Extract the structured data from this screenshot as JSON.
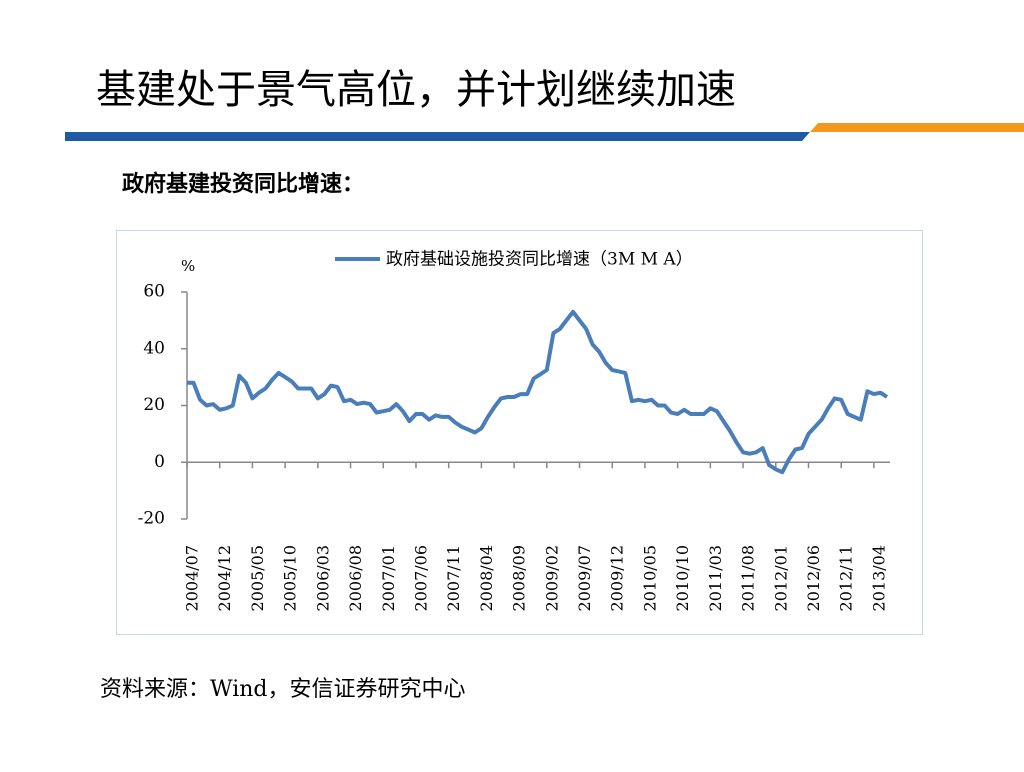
{
  "header": {
    "title": "基建处于景气高位，并计划继续加速"
  },
  "subtitle": "政府基建投资同比增速：",
  "source": "资料来源：Wind，安信证券研究中心",
  "chart_data": {
    "type": "line",
    "y_unit": "%",
    "categories": [
      "2004/07",
      null,
      null,
      null,
      null,
      "2004/12",
      null,
      null,
      null,
      null,
      "2005/05",
      null,
      null,
      null,
      null,
      "2005/10",
      null,
      null,
      null,
      null,
      "2006/03",
      null,
      null,
      null,
      null,
      "2006/08",
      null,
      null,
      null,
      null,
      "2007/01",
      null,
      null,
      null,
      null,
      "2007/06",
      null,
      null,
      null,
      null,
      "2007/11",
      null,
      null,
      null,
      null,
      "2008/04",
      null,
      null,
      null,
      null,
      "2008/09",
      null,
      null,
      null,
      null,
      "2009/02",
      null,
      null,
      null,
      null,
      "2009/07",
      null,
      null,
      null,
      null,
      "2009/12",
      null,
      null,
      null,
      null,
      "2010/05",
      null,
      null,
      null,
      null,
      "2010/10",
      null,
      null,
      null,
      null,
      "2011/03",
      null,
      null,
      null,
      null,
      "2011/08",
      null,
      null,
      null,
      null,
      "2012/01",
      null,
      null,
      null,
      null,
      "2012/06",
      null,
      null,
      null,
      null,
      "2012/11",
      null,
      null,
      null,
      null,
      "2013/04",
      null,
      null
    ],
    "series": [
      {
        "name": "政府基础设施投资同比增速（3M M A）",
        "color": "#4a7ebb",
        "values": [
          28,
          28,
          22,
          20,
          20.5,
          18.5,
          19,
          20,
          30.5,
          28,
          22.5,
          24.5,
          26,
          29,
          31.5,
          30,
          28.5,
          26,
          26,
          26,
          22.5,
          24,
          27,
          26.5,
          21.5,
          22,
          20.5,
          21,
          20.5,
          17.5,
          18,
          18.5,
          20.5,
          18,
          14.5,
          17,
          17,
          15,
          16.5,
          16,
          16,
          14,
          12.5,
          11.5,
          10.5,
          12,
          16,
          19.5,
          22.5,
          23,
          23,
          24,
          24,
          29.5,
          31,
          32.5,
          45.5,
          47,
          50,
          53,
          50,
          47,
          41.5,
          39,
          35,
          32.5,
          32,
          31.5,
          21.5,
          22,
          21.5,
          22,
          20,
          20,
          17.5,
          17,
          18.5,
          17,
          17,
          17,
          19,
          18,
          14.5,
          11,
          7,
          3.5,
          3,
          3.5,
          5,
          -1,
          -2.5,
          -3.5,
          1,
          4.5,
          5,
          10,
          12.5,
          15,
          19,
          22.5,
          22,
          17,
          16,
          15,
          25,
          24,
          24.5,
          23
        ]
      }
    ],
    "ylim": [
      -20,
      60
    ],
    "yticks": [
      -20,
      0,
      20,
      40,
      60
    ]
  }
}
